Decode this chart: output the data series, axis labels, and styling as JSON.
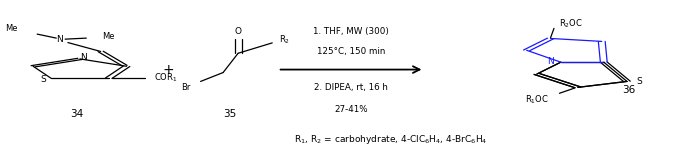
{
  "figsize": [
    6.85,
    1.51
  ],
  "dpi": 100,
  "bg_color": "#ffffff",
  "structure_color": "#000000",
  "blue_color": "#1a1aff",
  "reaction_conditions_line1": "1. THF, MW (300)",
  "reaction_conditions_line2": "125°C, 150 min",
  "reaction_conditions_line3": "2. DIPEA, rt, 16 h",
  "reaction_conditions_line4": "27-41%",
  "footnote": "R$_1$, R$_2$ = carbohydrate, 4-ClC$_6$H$_4$, 4-BrC$_6$H$_4$"
}
